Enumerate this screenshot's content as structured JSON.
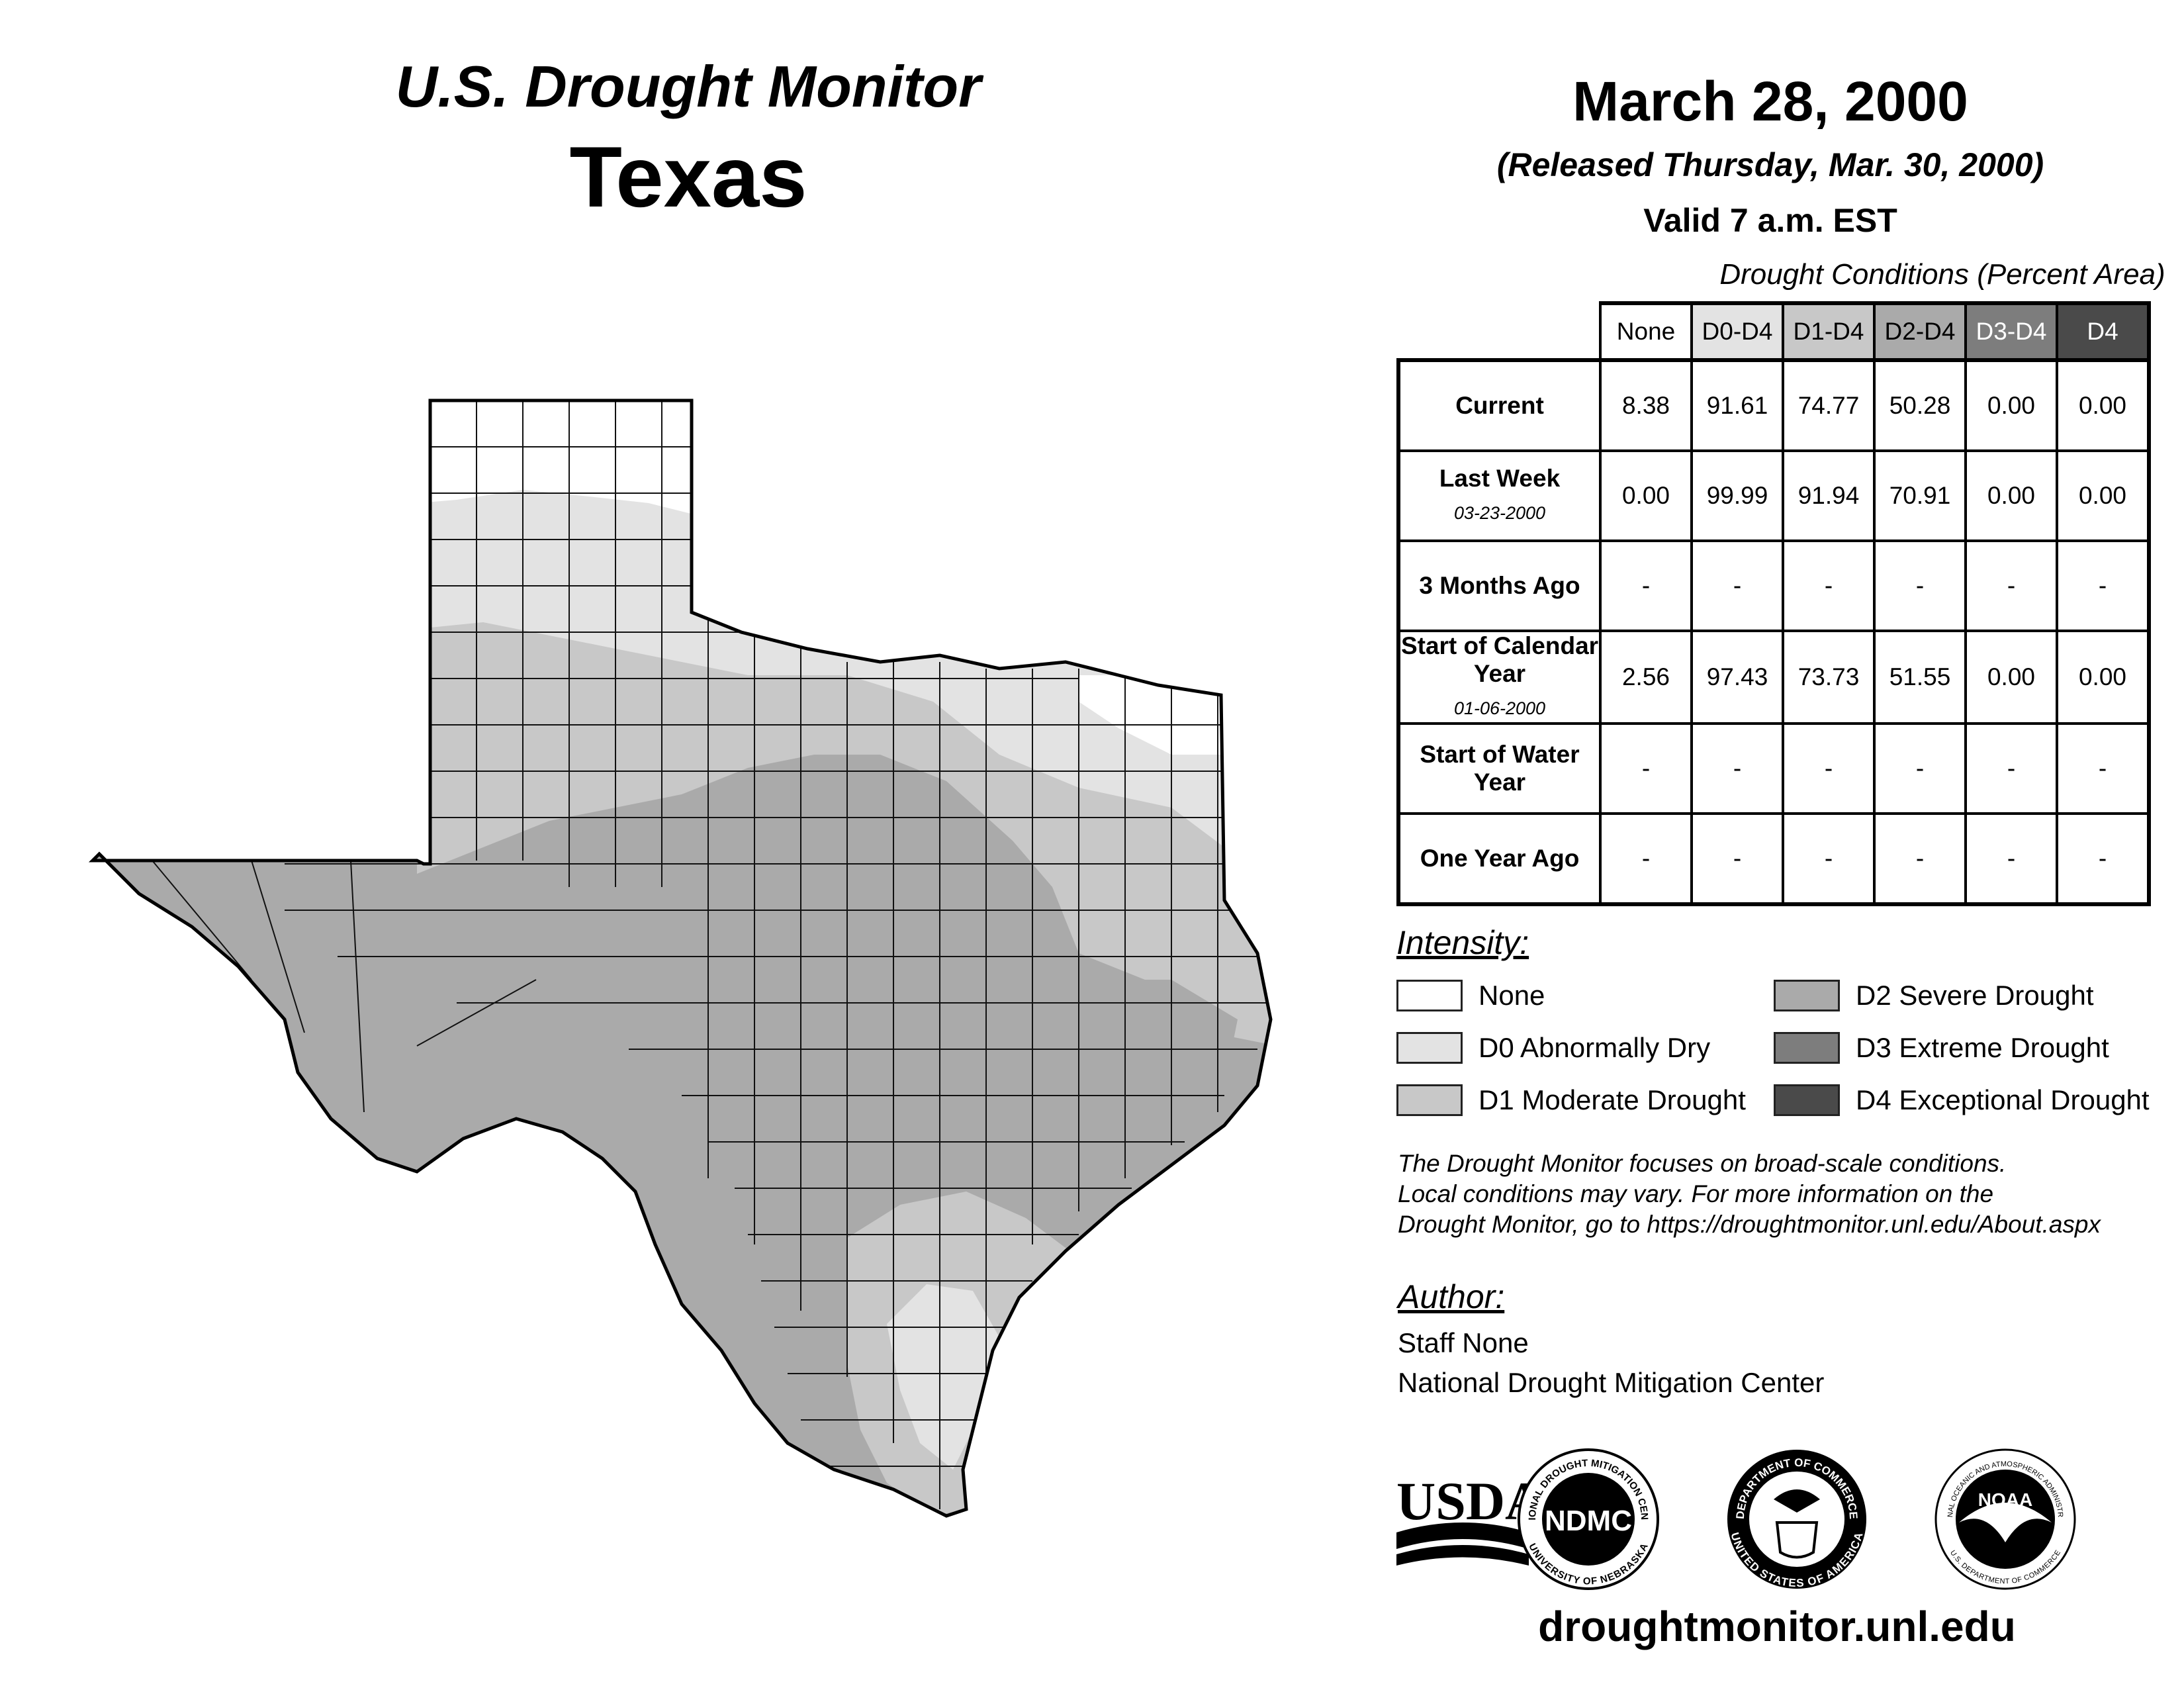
{
  "header": {
    "monitor_title": "U.S. Drought Monitor",
    "state": "Texas",
    "map_date": "March 28, 2000",
    "released": "(Released Thursday, Mar. 30, 2000)",
    "valid": "Valid 7 a.m. EST"
  },
  "table": {
    "caption": "Drought Conditions (Percent Area)",
    "columns": [
      "None",
      "D0-D4",
      "D1-D4",
      "D2-D4",
      "D3-D4",
      "D4"
    ],
    "rows": [
      {
        "label": "Current",
        "date": "",
        "values": [
          "8.38",
          "91.61",
          "74.77",
          "50.28",
          "0.00",
          "0.00"
        ]
      },
      {
        "label": "Last Week",
        "date": "03-23-2000",
        "values": [
          "0.00",
          "99.99",
          "91.94",
          "70.91",
          "0.00",
          "0.00"
        ]
      },
      {
        "label": "3 Months Ago",
        "date": "",
        "values": [
          "-",
          "-",
          "-",
          "-",
          "-",
          "-"
        ]
      },
      {
        "label": "Start of Calendar Year",
        "date": "01-06-2000",
        "values": [
          "2.56",
          "97.43",
          "73.73",
          "51.55",
          "0.00",
          "0.00"
        ]
      },
      {
        "label": "Start of Water Year",
        "date": "",
        "values": [
          "-",
          "-",
          "-",
          "-",
          "-",
          "-"
        ]
      },
      {
        "label": "One Year Ago",
        "date": "",
        "values": [
          "-",
          "-",
          "-",
          "-",
          "-",
          "-"
        ]
      }
    ]
  },
  "legend": {
    "title": "Intensity:",
    "items": [
      {
        "label": "None",
        "color": "#ffffff"
      },
      {
        "label": "D0 Abnormally Dry",
        "color": "#e3e3e3"
      },
      {
        "label": "D1 Moderate Drought",
        "color": "#c8c8c8"
      },
      {
        "label": "D2 Severe Drought",
        "color": "#aaaaaa"
      },
      {
        "label": "D3 Extreme Drought",
        "color": "#7d7d7d"
      },
      {
        "label": "D4 Exceptional Drought",
        "color": "#4a4a4a"
      }
    ]
  },
  "header_colors": [
    "#ffffff",
    "#e3e3e3",
    "#c8c8c8",
    "#aaaaaa",
    "#7d7d7d",
    "#4a4a4a"
  ],
  "note": {
    "line1": "The Drought Monitor focuses on broad-scale conditions.",
    "line2": "Local conditions may vary. For more information on the",
    "line3": "Drought Monitor, go to https://droughtmonitor.unl.edu/About.aspx"
  },
  "author": {
    "title": "Author:",
    "name": "Staff None",
    "org": "National Drought Mitigation Center"
  },
  "logos": {
    "usda": "USDA",
    "ndmc": "NDMC",
    "ndmc_ring_top": "NATIONAL DROUGHT MITIGATION CENTER",
    "ndmc_ring_bottom": "UNIVERSITY OF NEBRASKA",
    "doc_ring_top": "DEPARTMENT OF COMMERCE",
    "doc_ring_bottom": "UNITED STATES OF AMERICA",
    "noaa": "NOAA",
    "noaa_ring_top": "NATIONAL OCEANIC AND ATMOSPHERIC ADMINISTRATION",
    "noaa_ring_bottom": "U.S. DEPARTMENT OF COMMERCE"
  },
  "site_url": "droughtmonitor.unl.edu"
}
